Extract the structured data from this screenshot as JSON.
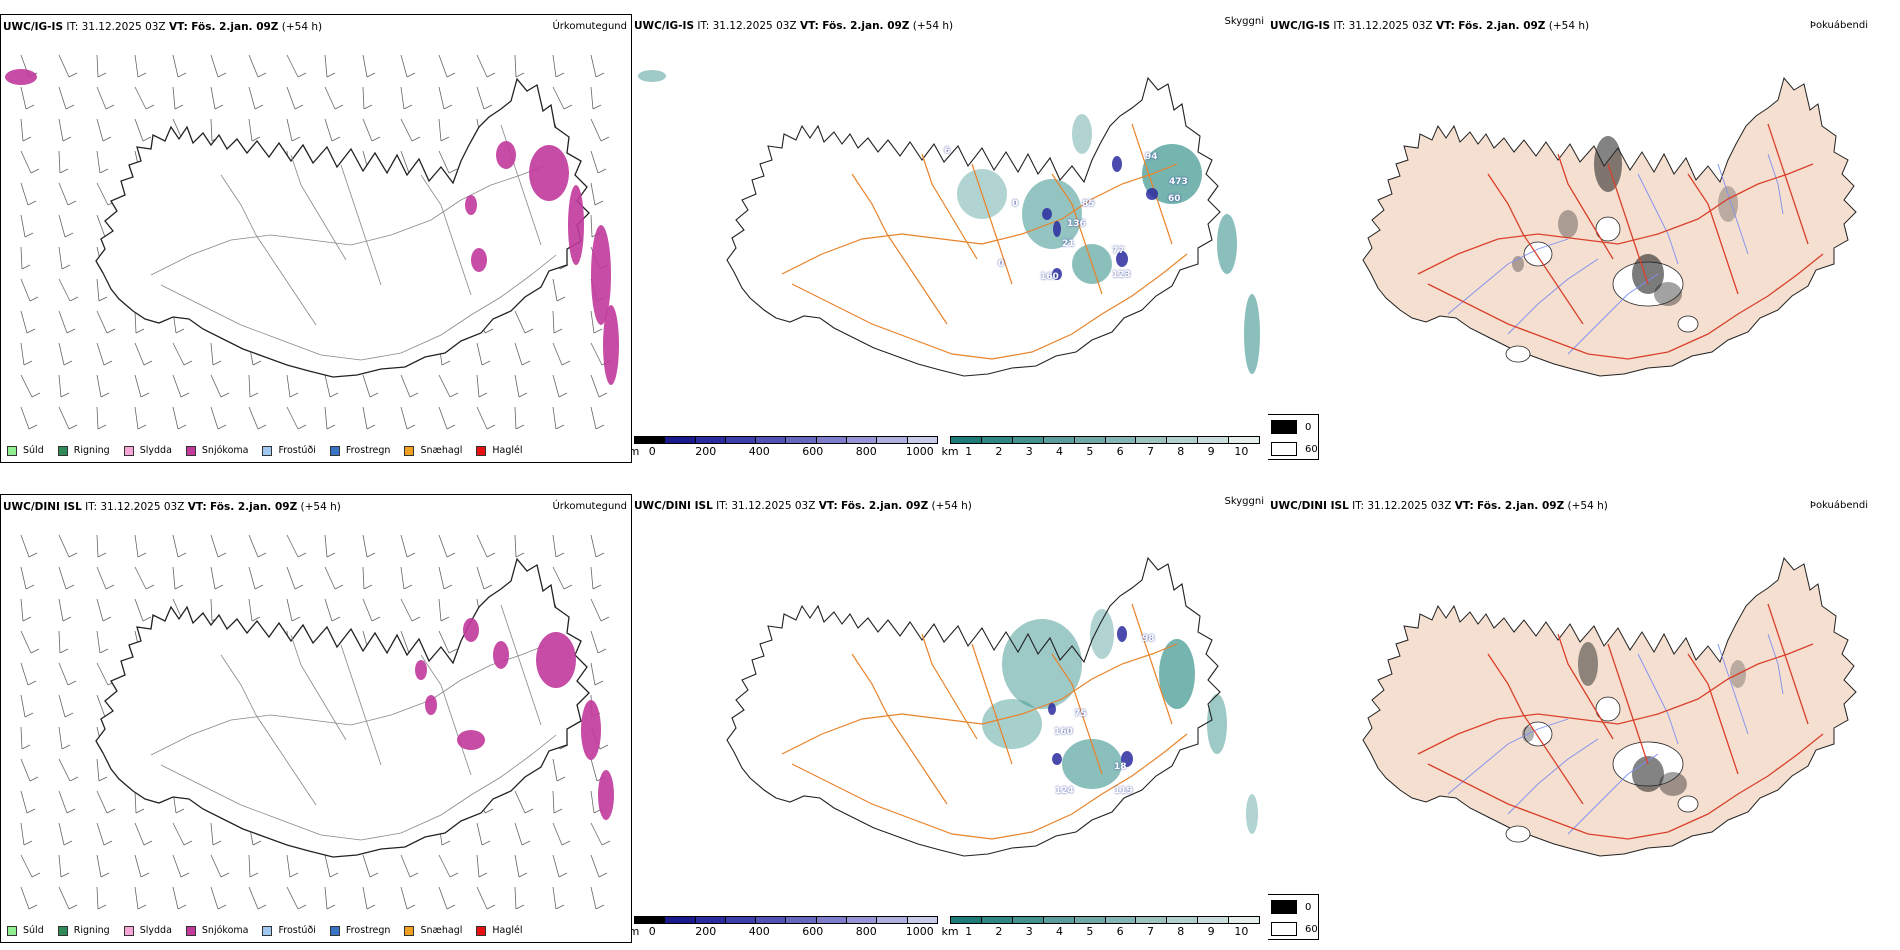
{
  "rows": [
    {
      "model": "UWC/IG-IS",
      "precip": {
        "product": "Úrkomutegund",
        "it_label": "IT:",
        "it_value": "31.12.2025 03Z",
        "vt_label": "VT:",
        "vt_value": "Fös. 2.jan. 09Z",
        "lead": "(+54 h)"
      },
      "cloud": {
        "product": "Skyggni",
        "it_label": "IT:",
        "it_value": "31.12.2025 03Z",
        "vt_label": "VT:",
        "vt_value": "Fös. 2.jan. 09Z",
        "lead": "(+54 h)",
        "peaks": [
          "94",
          "473",
          "60",
          "136",
          "85",
          "21",
          "77",
          "160",
          "123",
          "6",
          "0",
          "0"
        ]
      },
      "fog": {
        "product": "Þokuábendi",
        "it_label": "IT:",
        "it_value": "31.12.2025 03Z",
        "vt_label": "VT:",
        "vt_value": "Fös. 2.jan. 09Z",
        "lead": "(+54 h)"
      }
    },
    {
      "model": "UWC/DINI ISL",
      "precip": {
        "product": "Úrkomutegund",
        "it_label": "IT:",
        "it_value": "31.12.2025 03Z",
        "vt_label": "VT:",
        "vt_value": "Fös. 2.jan. 09Z",
        "lead": "(+54 h)"
      },
      "cloud": {
        "product": "Skyggni",
        "it_label": "IT:",
        "it_value": "31.12.2025 03Z",
        "vt_label": "VT:",
        "vt_value": "Fös. 2.jan. 09Z",
        "lead": "(+54 h)",
        "peaks": [
          "98",
          "75",
          "160",
          "18",
          "124",
          "119"
        ]
      },
      "fog": {
        "product": "Þokuábendi",
        "it_label": "IT:",
        "it_value": "31.12.2025 03Z",
        "vt_label": "VT:",
        "vt_value": "Fös. 2.jan. 09Z",
        "lead": "(+54 h)"
      }
    }
  ],
  "precip_legend": [
    {
      "label": "Súld",
      "color": "#90ee90"
    },
    {
      "label": "Rigning",
      "color": "#2e8b57"
    },
    {
      "label": "Slydda",
      "color": "#f4a6d7"
    },
    {
      "label": "Snjókoma",
      "color": "#c0399b"
    },
    {
      "label": "Frostúði",
      "color": "#9ec8ef"
    },
    {
      "label": "Frostregn",
      "color": "#3a73c4"
    },
    {
      "label": "Snæhagl",
      "color": "#f0a020"
    },
    {
      "label": "Haglél",
      "color": "#e81010"
    }
  ],
  "cloudbase_scale": {
    "unit": "m",
    "ticks": [
      "0",
      "200",
      "400",
      "600",
      "800",
      "1000"
    ],
    "colors": [
      "#000000",
      "#1a1a8c",
      "#2b2b9e",
      "#3d3dab",
      "#5252b5",
      "#6767bf",
      "#7d7dca",
      "#9696d4",
      "#b0b0df",
      "#cacaea"
    ]
  },
  "visibility_scale": {
    "unit": "km",
    "ticks": [
      "1",
      "2",
      "3",
      "4",
      "5",
      "6",
      "7",
      "8",
      "9",
      "10"
    ],
    "colors": [
      "#1d7b78",
      "#2f8683",
      "#44918e",
      "#5a9d9a",
      "#70a9a6",
      "#86b6b3",
      "#9dc3c0",
      "#b4d0ce",
      "#cbdedc",
      "#e3eeed"
    ]
  },
  "fog_scale": {
    "items": [
      {
        "label": "0",
        "color": "#000000"
      },
      {
        "label": "60",
        "color": "#ffffff"
      }
    ]
  },
  "colors": {
    "land_fog": "#f5dfd0",
    "road_orange": "#e8832a",
    "road_red": "#d9412b",
    "river_blue": "#7d8ff0",
    "snow_magenta": "#c0399b",
    "cloud_teal": "#3c948f",
    "low_cloud_blue": "#2b2ba0"
  }
}
